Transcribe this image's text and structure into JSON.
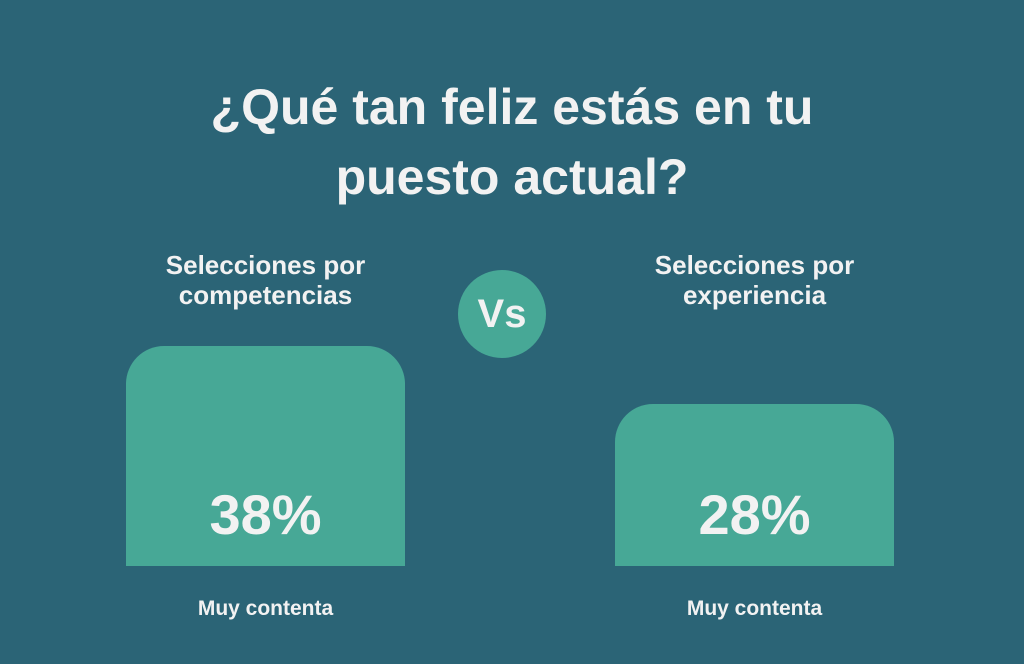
{
  "chart_data": {
    "type": "bar",
    "title": "¿Qué tan feliz estás en tu puesto actual?",
    "badge": "Vs",
    "categories": [
      "Selecciones por competencias",
      "Selecciones por experiencia"
    ],
    "series": [
      {
        "name": "Muy contenta",
        "color": "#47a896",
        "values": [
          38,
          28
        ],
        "value_labels": [
          "38%",
          "28%"
        ]
      }
    ],
    "background": "#2b6476"
  }
}
